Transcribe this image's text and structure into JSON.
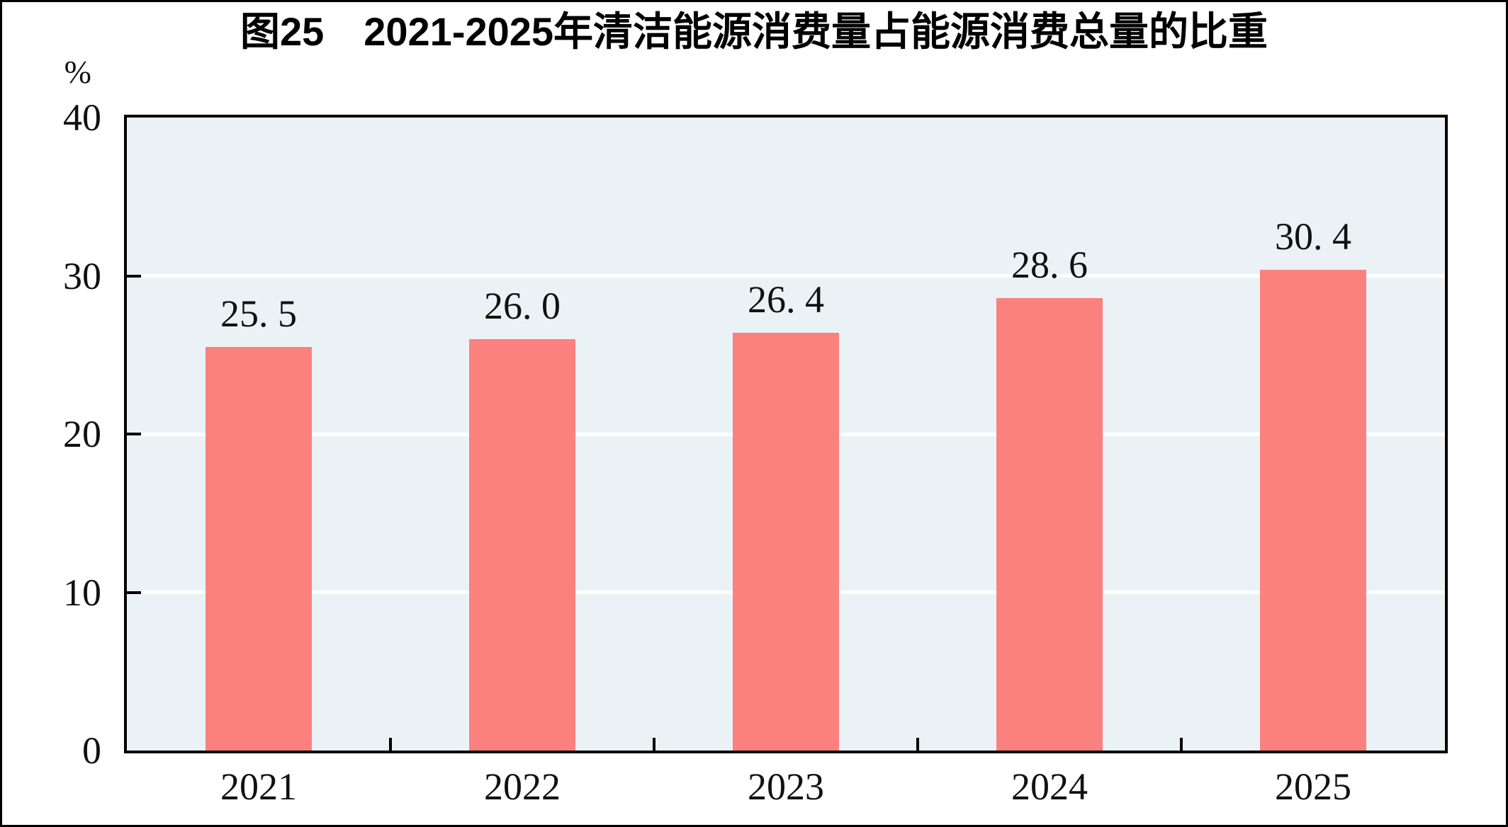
{
  "chart_data": {
    "type": "bar",
    "title": "图25　2021-2025年清洁能源消费量占能源消费总量的比重",
    "y_unit_label": "%",
    "categories": [
      "2021",
      "2022",
      "2023",
      "2024",
      "2025"
    ],
    "values": [
      25.5,
      26.0,
      26.4,
      28.6,
      30.4
    ],
    "value_labels": [
      "25. 5",
      "26. 0",
      "26. 4",
      "28. 6",
      "30. 4"
    ],
    "xlabel": "",
    "ylabel": "%",
    "ylim": [
      0,
      40
    ],
    "y_ticks": [
      0,
      10,
      20,
      30,
      40
    ],
    "grid": "horizontal-white-lines-at-10-20-30",
    "legend": "none",
    "colors": {
      "bar": "#FB817F",
      "plot_background": "#EBF2F5",
      "gridline": "#FFFFFF",
      "axis_frame": "#000000",
      "text": "#111111",
      "page_background": "#FFFFFF"
    }
  }
}
